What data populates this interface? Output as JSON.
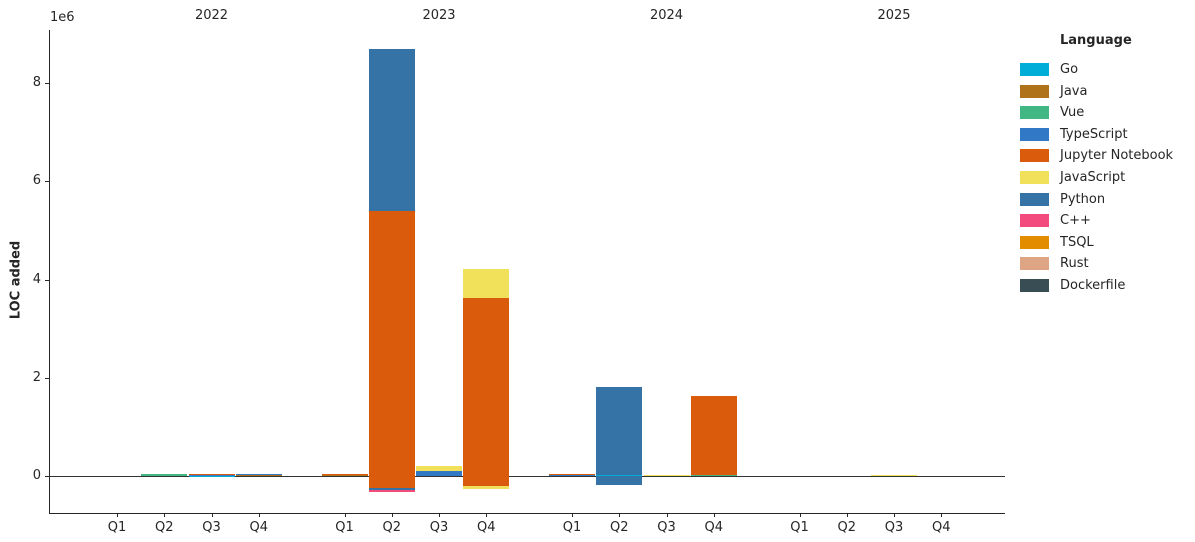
{
  "chart_data": {
    "type": "bar",
    "stacked": true,
    "title": "",
    "ylabel": "LOC added",
    "offset_text": "1e6",
    "legend_title": "Language",
    "legend_position": "right",
    "grid": false,
    "unit": "values are millions of lines (1e6); removed = stacked below zero",
    "y_ticks": [
      0,
      2,
      4,
      6,
      8
    ],
    "ylim": [
      -0.75,
      9.1
    ],
    "years": [
      "2022",
      "2023",
      "2024",
      "2025"
    ],
    "quarters": [
      "Q1",
      "Q2",
      "Q3",
      "Q4"
    ],
    "languages": [
      {
        "name": "Go",
        "color": "#00ADD8"
      },
      {
        "name": "Java",
        "color": "#b07219"
      },
      {
        "name": "Vue",
        "color": "#41b883"
      },
      {
        "name": "TypeScript",
        "color": "#3178c6"
      },
      {
        "name": "Jupyter Notebook",
        "color": "#DA5B0B"
      },
      {
        "name": "JavaScript",
        "color": "#f1e05a"
      },
      {
        "name": "Python",
        "color": "#3572A5"
      },
      {
        "name": "C++",
        "color": "#f34b7d"
      },
      {
        "name": "TSQL",
        "color": "#e38c00"
      },
      {
        "name": "Rust",
        "color": "#dea584"
      },
      {
        "name": "Dockerfile",
        "color": "#384d54"
      }
    ],
    "bars": [
      {
        "year": "2022",
        "quarter": "Q1",
        "added": [],
        "removed": []
      },
      {
        "year": "2022",
        "quarter": "Q2",
        "added": [
          {
            "language": "Vue",
            "value": 0.05
          }
        ],
        "removed": []
      },
      {
        "year": "2022",
        "quarter": "Q3",
        "added": [
          {
            "language": "Go",
            "value": 0.01
          },
          {
            "language": "TypeScript",
            "value": 0.025
          },
          {
            "language": "Jupyter Notebook",
            "value": 0.012
          }
        ],
        "removed": []
      },
      {
        "year": "2022",
        "quarter": "Q4",
        "added": [
          {
            "language": "Java",
            "value": 0.03
          },
          {
            "language": "TypeScript",
            "value": 0.02
          }
        ],
        "removed": []
      },
      {
        "year": "2023",
        "quarter": "Q1",
        "added": [
          {
            "language": "Java",
            "value": 0.03
          },
          {
            "language": "Jupyter Notebook",
            "value": 0.02
          }
        ],
        "removed": []
      },
      {
        "year": "2023",
        "quarter": "Q2",
        "added": [
          {
            "language": "Jupyter Notebook",
            "value": 5.4
          },
          {
            "language": "Python",
            "value": 3.3
          }
        ],
        "removed": [
          {
            "language": "Jupyter Notebook",
            "value": 0.24
          },
          {
            "language": "Python",
            "value": 0.05
          },
          {
            "language": "C++",
            "value": 0.04
          }
        ]
      },
      {
        "year": "2023",
        "quarter": "Q3",
        "added": [
          {
            "language": "TypeScript",
            "value": 0.1
          },
          {
            "language": "JavaScript",
            "value": 0.1
          }
        ],
        "removed": []
      },
      {
        "year": "2023",
        "quarter": "Q4",
        "added": [
          {
            "language": "Jupyter Notebook",
            "value": 3.63
          },
          {
            "language": "JavaScript",
            "value": 0.59
          }
        ],
        "removed": [
          {
            "language": "Jupyter Notebook",
            "value": 0.2
          },
          {
            "language": "JavaScript",
            "value": 0.06
          }
        ]
      },
      {
        "year": "2024",
        "quarter": "Q1",
        "added": [
          {
            "language": "TypeScript",
            "value": 0.02
          },
          {
            "language": "Jupyter Notebook",
            "value": 0.025
          }
        ],
        "removed": []
      },
      {
        "year": "2024",
        "quarter": "Q2",
        "added": [
          {
            "language": "Go",
            "value": 0.03
          },
          {
            "language": "Python",
            "value": 1.78
          }
        ],
        "removed": [
          {
            "language": "Python",
            "value": 0.18
          }
        ]
      },
      {
        "year": "2024",
        "quarter": "Q3",
        "added": [
          {
            "language": "JavaScript",
            "value": 0.02
          }
        ],
        "removed": []
      },
      {
        "year": "2024",
        "quarter": "Q4",
        "added": [
          {
            "language": "Vue",
            "value": 0.03
          },
          {
            "language": "Jupyter Notebook",
            "value": 1.6
          }
        ],
        "removed": []
      },
      {
        "year": "2025",
        "quarter": "Q1",
        "added": [],
        "removed": []
      },
      {
        "year": "2025",
        "quarter": "Q2",
        "added": [],
        "removed": []
      },
      {
        "year": "2025",
        "quarter": "Q3",
        "added": [
          {
            "language": "JavaScript",
            "value": 0.02
          }
        ],
        "removed": []
      },
      {
        "year": "2025",
        "quarter": "Q4",
        "added": [],
        "removed": []
      }
    ]
  }
}
